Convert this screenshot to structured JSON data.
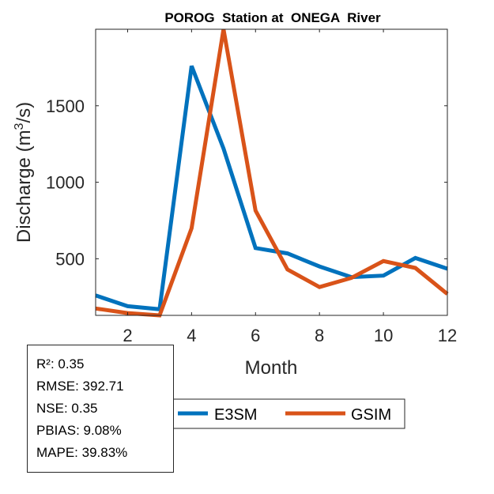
{
  "chart_data": {
    "type": "line",
    "title": "POROG  Station at  ONEGA  River",
    "xlabel": "Month",
    "ylabel_prefix": "Discharge (m",
    "ylabel_sup": "3",
    "ylabel_suffix": "/s)",
    "xlim": [
      1,
      12
    ],
    "ylim": [
      130,
      2000
    ],
    "xticks": [
      2,
      4,
      6,
      8,
      10,
      12
    ],
    "yticks": [
      500,
      1000,
      1500
    ],
    "x": [
      1,
      2,
      3,
      4,
      5,
      6,
      7,
      8,
      9,
      10,
      11,
      12
    ],
    "series": [
      {
        "name": "E3SM",
        "color": "#0072BD",
        "values": [
          260,
          190,
          170,
          1760,
          1220,
          570,
          535,
          450,
          380,
          390,
          505,
          435
        ]
      },
      {
        "name": "GSIM",
        "color": "#D95319",
        "values": [
          175,
          145,
          130,
          700,
          2000,
          815,
          430,
          315,
          375,
          485,
          440,
          270
        ]
      }
    ]
  },
  "stats": {
    "r2": "R²: 0.35",
    "rmse": "RMSE: 392.71",
    "nse": "NSE: 0.35",
    "pbias": "PBIAS: 9.08%",
    "mape": "MAPE: 39.83%"
  }
}
